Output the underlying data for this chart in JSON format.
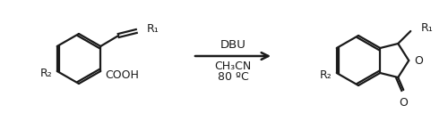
{
  "background_color": "#ffffff",
  "line_color": "#1a1a1a",
  "text_color": "#1a1a1a",
  "figsize": [
    5.0,
    1.27
  ],
  "dpi": 100,
  "arrow_label_top": "DBU",
  "arrow_label_mid": "CH₃CN",
  "arrow_label_bot": "80 ºC",
  "r1": "R₁",
  "r2": "R₂",
  "cooh": "COOH",
  "o_ring": "O",
  "o_carbonyl": "O"
}
